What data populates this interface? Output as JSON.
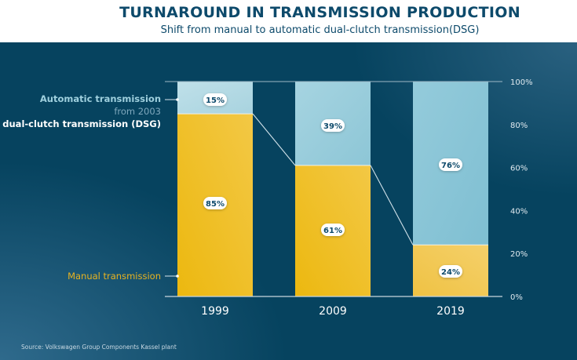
{
  "header": {
    "title": "TURNAROUND IN TRANSMISSION PRODUCTION",
    "subtitle": "Shift from manual to automatic dual-clutch transmission(DSG)"
  },
  "legend": {
    "automatic_line1": "Automatic transmission",
    "automatic_line2": "from 2003",
    "automatic_line3": "dual-clutch transmission (DSG)",
    "manual": "Manual transmission"
  },
  "source": "Source: Volkswagen Group Components Kassel plant",
  "colors": {
    "background": "#06435f",
    "title": "#0d4a6b",
    "manual": "#f0c030",
    "automatic": "#9fd0de",
    "manual_label": "#e8b320",
    "automatic_label": "#9fd0de",
    "axis_text": "#dfe9ef"
  },
  "chart_data": {
    "type": "bar",
    "stacked": true,
    "title": "TURNAROUND IN TRANSMISSION PRODUCTION",
    "subtitle": "Shift from manual to automatic dual-clutch transmission(DSG)",
    "categories": [
      "1999",
      "2009",
      "2019"
    ],
    "series": [
      {
        "name": "Manual transmission",
        "values": [
          85,
          61,
          24
        ],
        "labels": [
          "85%",
          "61%",
          "24%"
        ]
      },
      {
        "name": "Automatic transmission / from 2003 dual-clutch transmission (DSG)",
        "values": [
          15,
          39,
          76
        ],
        "labels": [
          "15%",
          "39%",
          "76%"
        ]
      }
    ],
    "xlabel": "",
    "ylabel": "",
    "ylim": [
      0,
      100
    ],
    "yticks": [
      0,
      20,
      40,
      60,
      80,
      100
    ],
    "ytick_labels": [
      "0%",
      "20%",
      "40%",
      "60%",
      "80%",
      "100%"
    ],
    "yaxis_position": "right",
    "grid": false,
    "legend_position": "left",
    "connector_lines": true,
    "source": "Source: Volkswagen Group Components Kassel plant"
  }
}
